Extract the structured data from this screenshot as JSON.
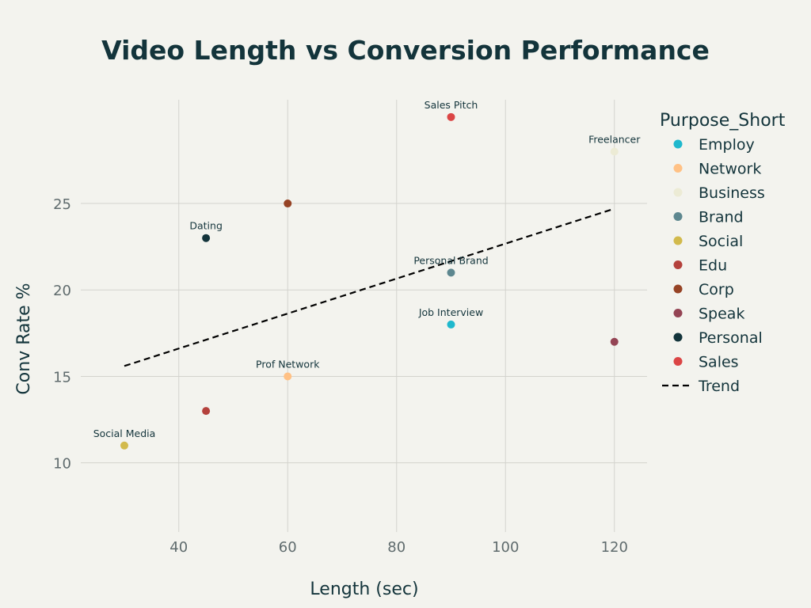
{
  "chart_data": {
    "type": "scatter",
    "title": "Video Length vs Conversion Performance",
    "xlabel": "Length (sec)",
    "ylabel": "Conv Rate %",
    "xlim": [
      22,
      126
    ],
    "ylim": [
      6,
      31
    ],
    "xticks": [
      40,
      60,
      80,
      100,
      120
    ],
    "yticks": [
      10,
      15,
      20,
      25
    ],
    "grid": true,
    "legend_title": "Purpose_Short",
    "legend_position": "right",
    "series": [
      {
        "name": "Employ",
        "color": "#1fb8cd",
        "x": 90,
        "y": 18,
        "annotation": "Job Interview"
      },
      {
        "name": "Network",
        "color": "#ffc185",
        "x": 60,
        "y": 15,
        "annotation": "Prof Network"
      },
      {
        "name": "Business",
        "color": "#ecebd5",
        "x": 120,
        "y": 28,
        "annotation": "Freelancer"
      },
      {
        "name": "Brand",
        "color": "#5d878f",
        "x": 90,
        "y": 21,
        "annotation": "Personal Brand"
      },
      {
        "name": "Social",
        "color": "#d2ba4c",
        "x": 30,
        "y": 11,
        "annotation": "Social Media"
      },
      {
        "name": "Edu",
        "color": "#b4413c",
        "x": 45,
        "y": 13,
        "annotation": ""
      },
      {
        "name": "Corp",
        "color": "#964325",
        "x": 60,
        "y": 25,
        "annotation": ""
      },
      {
        "name": "Speak",
        "color": "#944454",
        "x": 120,
        "y": 17,
        "annotation": ""
      },
      {
        "name": "Personal",
        "color": "#13343b",
        "x": 45,
        "y": 23,
        "annotation": "Dating"
      },
      {
        "name": "Sales",
        "color": "#db4545",
        "x": 90,
        "y": 30,
        "annotation": "Sales Pitch"
      }
    ],
    "trend": {
      "name": "Trend",
      "x": [
        30,
        120
      ],
      "y": [
        15.6,
        24.7
      ],
      "style": "dashed",
      "color": "#000000"
    }
  }
}
